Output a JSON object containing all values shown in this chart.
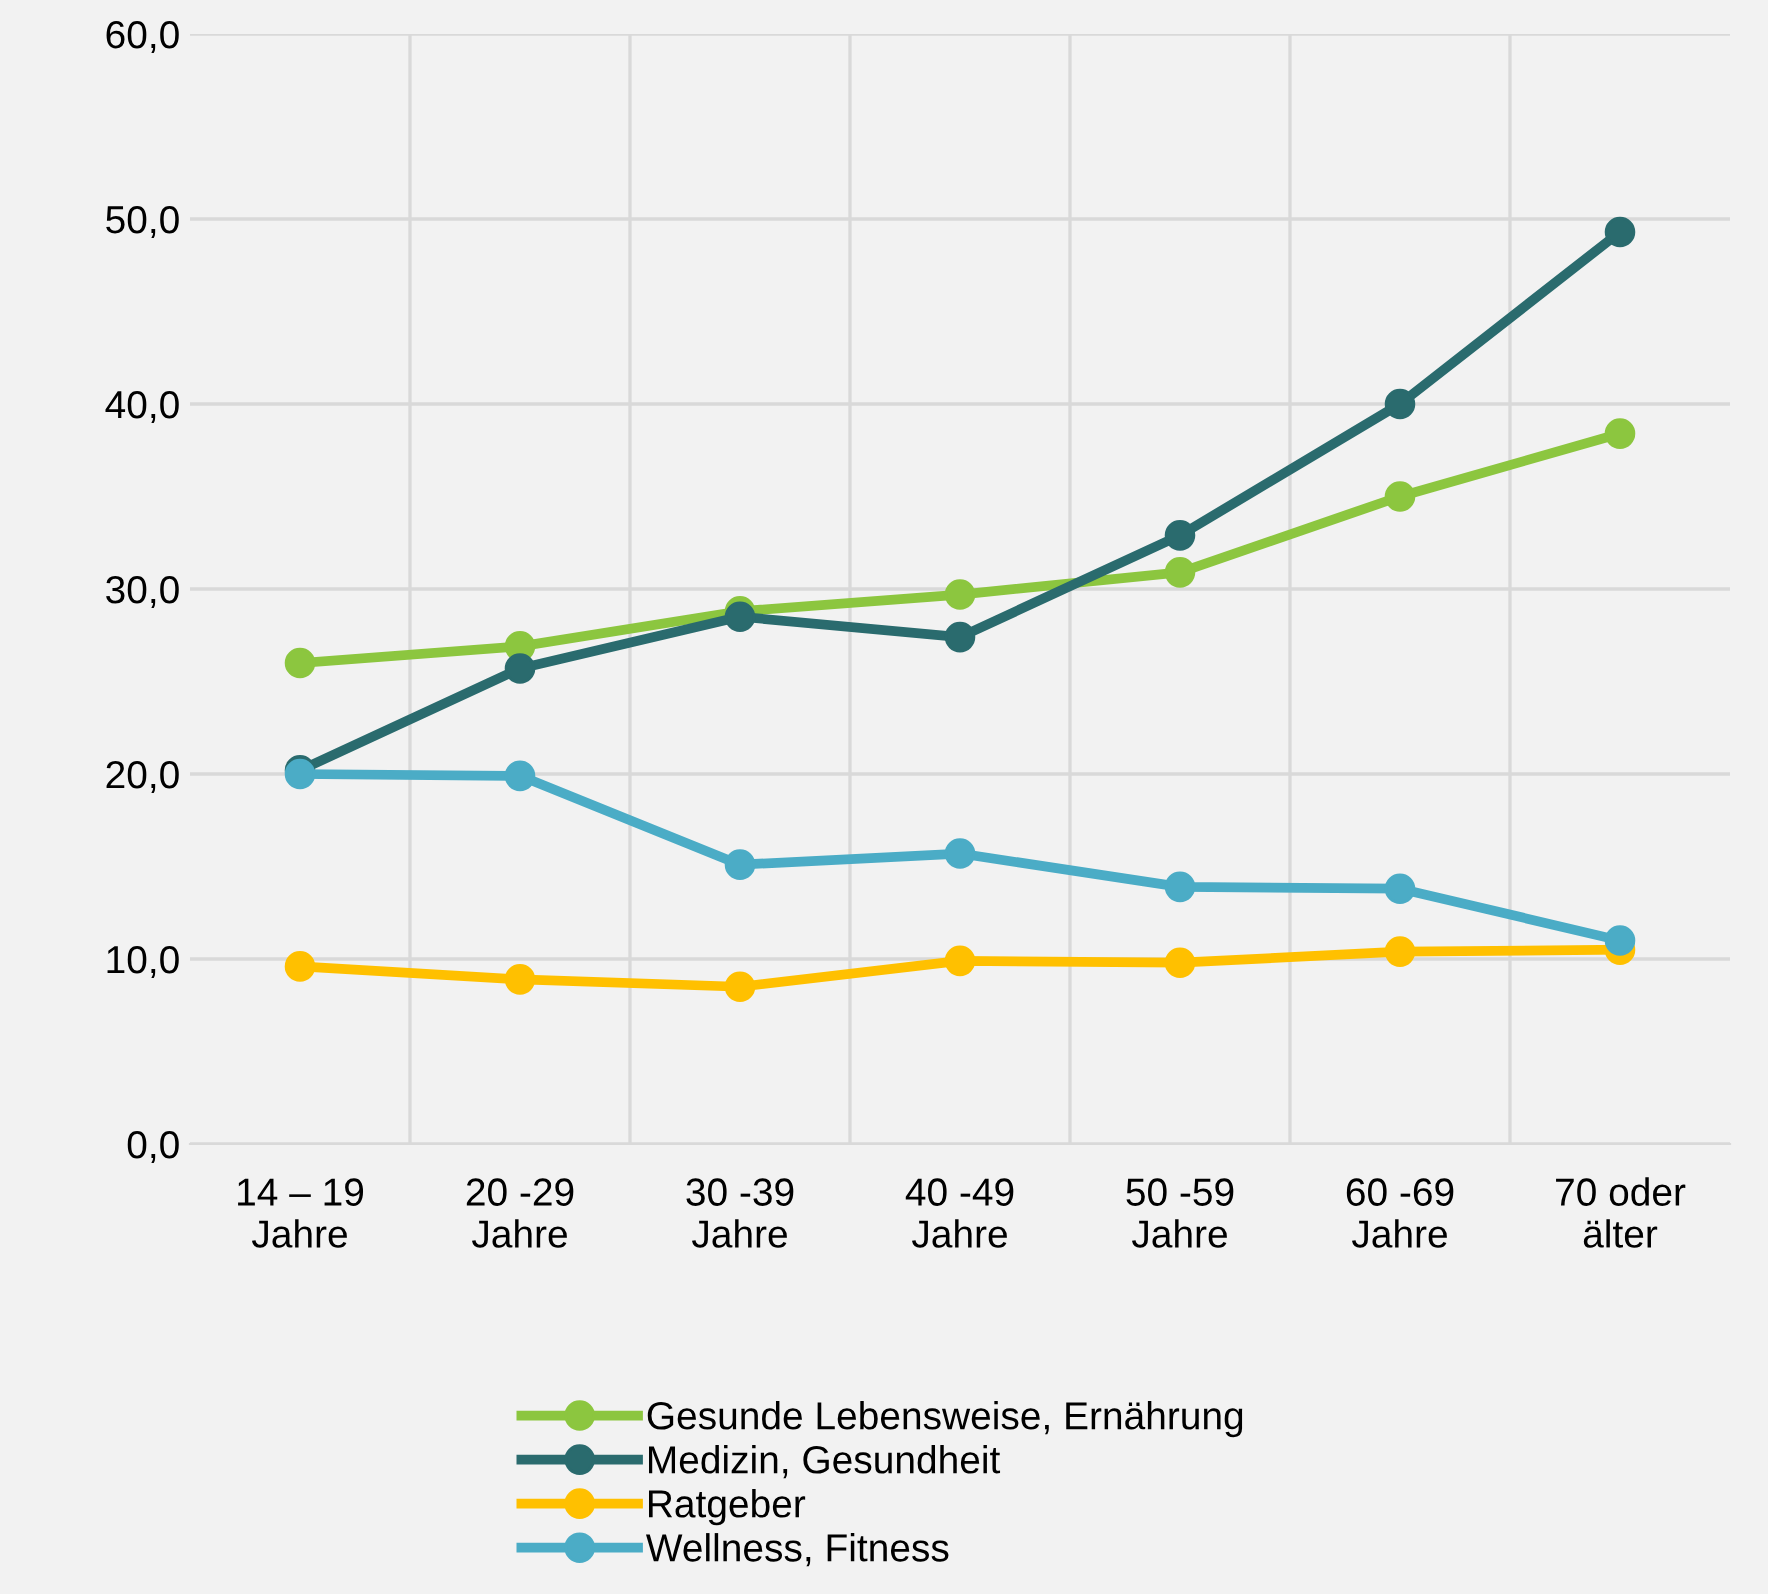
{
  "chart_data": {
    "type": "line",
    "categories": [
      "14 – 19\nJahre",
      "20 -29\nJahre",
      "30 -39\nJahre",
      "40 -49\nJahre",
      "50 -59\nJahre",
      "60 -69\nJahre",
      "70 oder\nälter"
    ],
    "series": [
      {
        "name": "Gesunde Lebensweise, Ernährung",
        "color": "#8cc63f",
        "values": [
          26.0,
          26.9,
          28.8,
          29.7,
          30.9,
          35.0,
          38.4
        ]
      },
      {
        "name": "Medizin, Gesundheit",
        "color": "#2a6b6e",
        "values": [
          20.2,
          25.7,
          28.5,
          27.4,
          32.9,
          40.0,
          49.3
        ]
      },
      {
        "name": "Ratgeber",
        "color": "#ffc000",
        "values": [
          9.6,
          8.9,
          8.5,
          9.9,
          9.8,
          10.4,
          10.5
        ]
      },
      {
        "name": "Wellness, Fitness",
        "color": "#4bacc6",
        "values": [
          20.0,
          19.9,
          15.1,
          15.7,
          13.9,
          13.8,
          11.0
        ]
      }
    ],
    "ylim": [
      0,
      60
    ],
    "yticks": [
      {
        "value": 0,
        "label": "0,0"
      },
      {
        "value": 10,
        "label": "10,0"
      },
      {
        "value": 20,
        "label": "20,0"
      },
      {
        "value": 30,
        "label": "30,0"
      },
      {
        "value": 40,
        "label": "40,0"
      },
      {
        "value": 50,
        "label": "50,0"
      },
      {
        "value": 60,
        "label": "60,0"
      }
    ],
    "grid": true,
    "legend": "bottom",
    "marker": "circle",
    "line_style": "solid"
  }
}
